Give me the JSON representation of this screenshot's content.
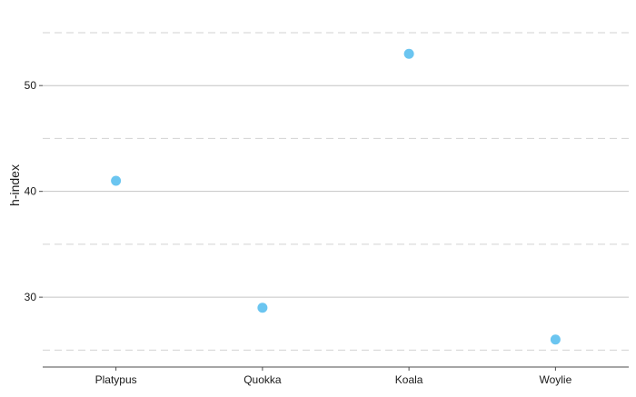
{
  "chart_data": {
    "type": "scatter",
    "title": "",
    "xlabel": "",
    "ylabel": "h-index",
    "categories": [
      "Platypus",
      "Quokka",
      "Koala",
      "Woylie"
    ],
    "values": [
      41,
      29,
      53,
      26
    ],
    "ylim": [
      23.4,
      57.4
    ],
    "y_major_ticks": [
      30,
      40,
      50
    ],
    "y_minor_ticks": [
      25,
      35,
      45,
      55
    ],
    "y_tick_labels": [
      "30",
      "40",
      "50"
    ],
    "grid": true,
    "legend": "none",
    "point_color": "#6BC5F0"
  }
}
